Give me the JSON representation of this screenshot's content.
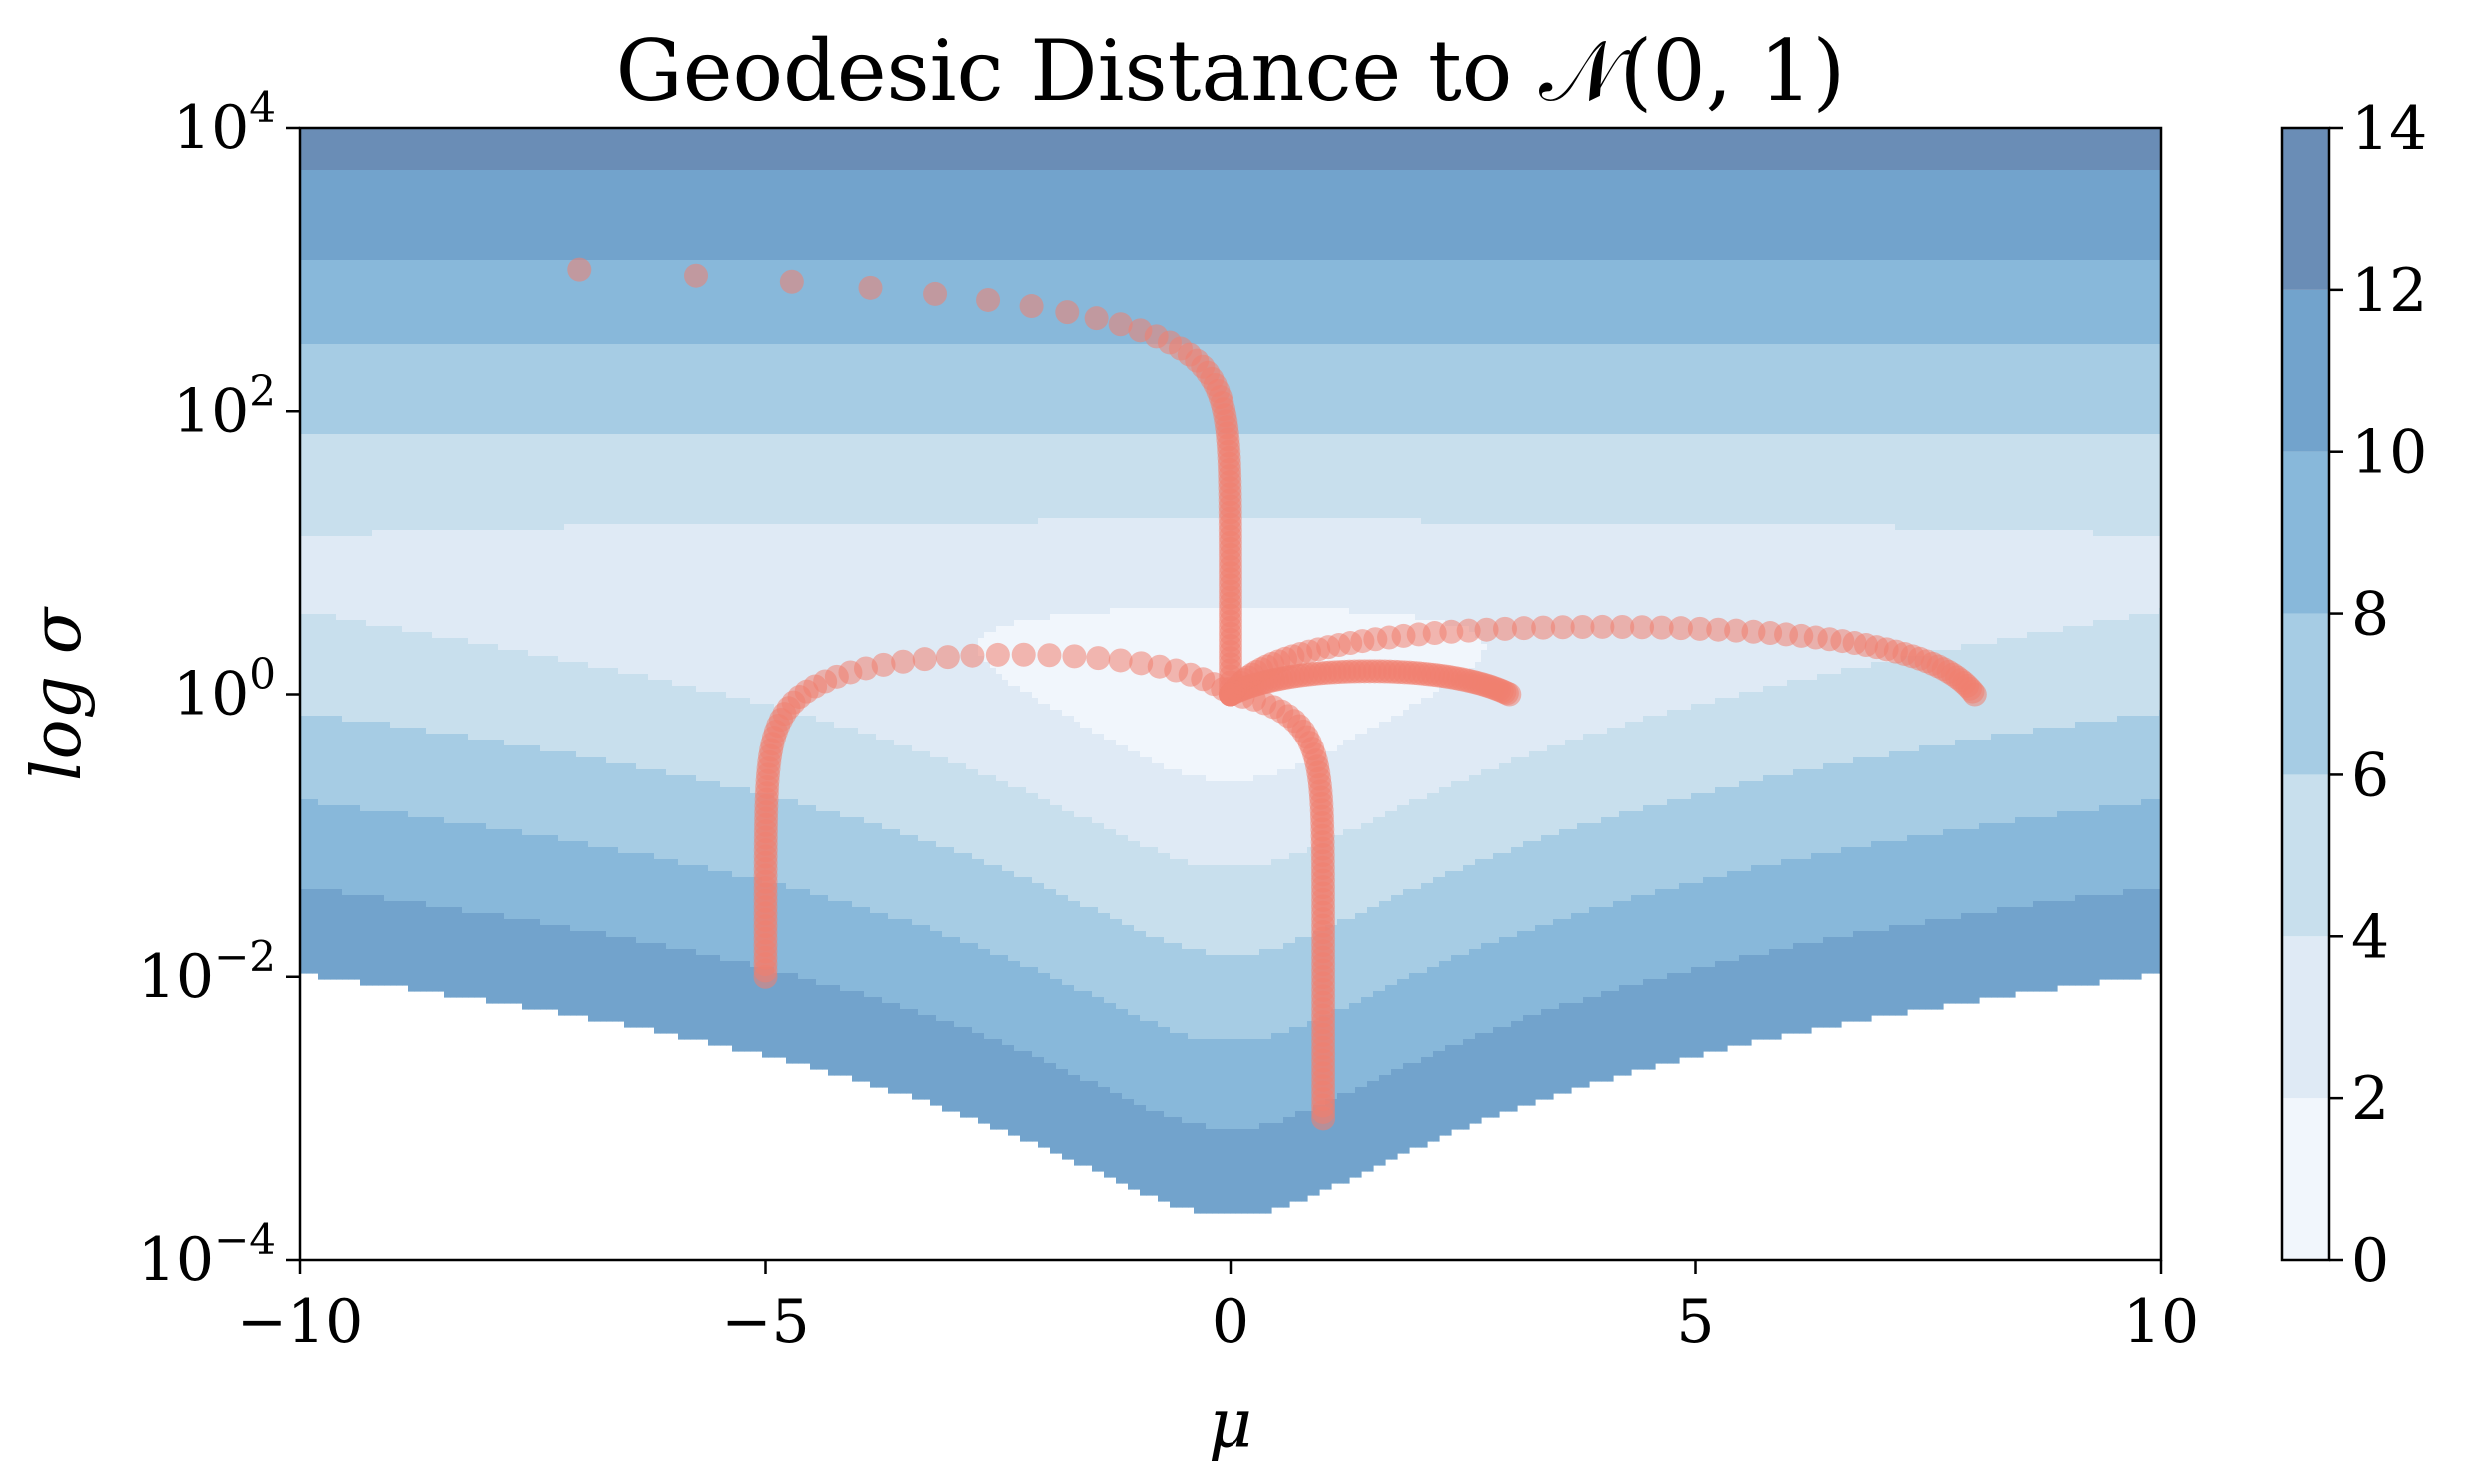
{
  "chart_data": {
    "type": "contour",
    "title": "Geodesic Distance to 𝒩(0, 1)",
    "xlabel": "μ",
    "ylabel": "log σ",
    "xlim": [
      -10,
      10
    ],
    "ylim_log10": [
      -4,
      4
    ],
    "y_scale": "log",
    "grid": false,
    "x_ticks": [
      {
        "value": -10,
        "label": "−10"
      },
      {
        "value": -5,
        "label": "−5"
      },
      {
        "value": 0,
        "label": "0"
      },
      {
        "value": 5,
        "label": "5"
      },
      {
        "value": 10,
        "label": "10"
      }
    ],
    "y_ticks": [
      {
        "exp": -4,
        "base": "10",
        "sup": "−4"
      },
      {
        "exp": -2,
        "base": "10",
        "sup": "−2"
      },
      {
        "exp": 0,
        "base": "10",
        "sup": "0"
      },
      {
        "exp": 2,
        "base": "10",
        "sup": "2"
      },
      {
        "exp": 4,
        "base": "10",
        "sup": "4"
      }
    ],
    "contour_levels": [
      0,
      2,
      4,
      6,
      8,
      10,
      12,
      14
    ],
    "level_colors": [
      "#f1f6fc",
      "#dfeaf5",
      "#c8dfed",
      "#a6cce4",
      "#88b8da",
      "#72a3cc",
      "#6a8db6"
    ],
    "colorbar_ticks": [
      "0",
      "2",
      "4",
      "6",
      "8",
      "10",
      "12",
      "14"
    ],
    "marker_color": "#f08070",
    "geodesics": [
      {
        "start_mu": -7,
        "start_sigma": 1000,
        "end_mu": 0,
        "end_sigma": 1
      },
      {
        "start_mu": -5,
        "start_sigma": 0.01,
        "end_mu": 0,
        "end_sigma": 1
      },
      {
        "start_mu": 1,
        "start_sigma": 0.001,
        "end_mu": 0,
        "end_sigma": 1
      },
      {
        "start_mu": 3,
        "start_sigma": 1,
        "end_mu": 0,
        "end_sigma": 1
      },
      {
        "start_mu": 8,
        "start_sigma": 1,
        "end_mu": 0,
        "end_sigma": 1
      }
    ]
  }
}
